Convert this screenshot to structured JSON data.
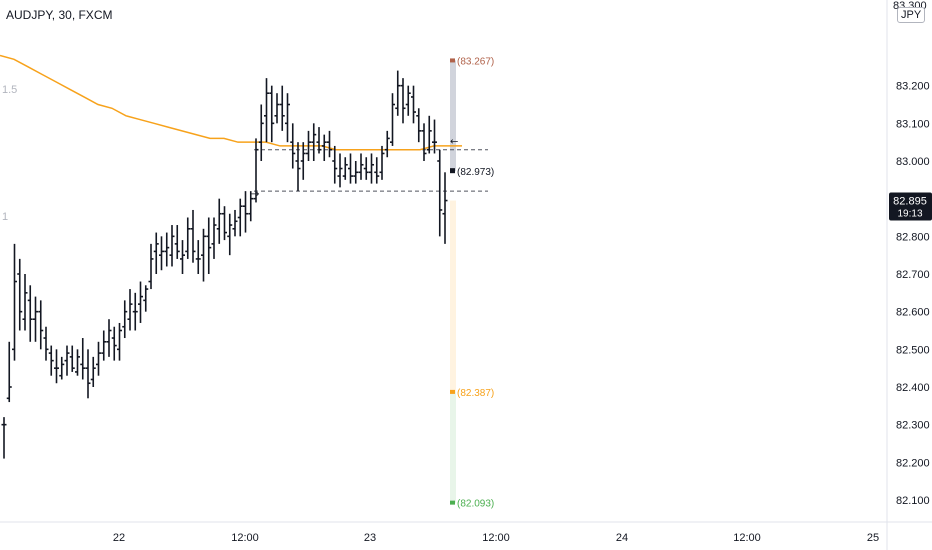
{
  "header": {
    "symbol": "AUDJPY, 30, FXCM"
  },
  "currency_badge": "JPY",
  "corner_price": "83.300",
  "side_marks": [
    "1.5",
    "1"
  ],
  "last_price": {
    "price": "82.895",
    "countdown": "19:13",
    "bg": "#131722"
  },
  "colors": {
    "bars": "#131722",
    "ma": "#f7a21b",
    "grid_text": "#131722",
    "upper_zone": "#d1d4dc",
    "lower_zone_orange": "#fff3e0",
    "lower_zone_green": "#e8f5e9",
    "stop_label": "#c0392b",
    "target_orange": "#f7a21b",
    "target_green": "#4caf50"
  },
  "chart_data": {
    "type": "ohlc-bar",
    "title": "AUDJPY, 30, FXCM",
    "y_axis": {
      "ticks": [
        "83.300",
        "83.200",
        "83.100",
        "83.000",
        "82.900",
        "82.800",
        "82.700",
        "82.600",
        "82.500",
        "82.400",
        "82.300",
        "82.200",
        "82.100"
      ],
      "range": [
        82.06,
        83.4
      ]
    },
    "x_axis": {
      "labels": [
        "22",
        "12:00",
        "23",
        "12:00",
        "24",
        "12:00",
        "25"
      ]
    },
    "levels": {
      "upper_dashed": 83.03,
      "lower_dashed": 82.92
    },
    "annotations": [
      {
        "label": "(83.267)",
        "value": 83.267,
        "color": "#b0624a"
      },
      {
        "label": "(82.973)",
        "value": 82.973,
        "color": "#131722"
      },
      {
        "label": "(82.387)",
        "value": 82.387,
        "color": "#f7a21b"
      },
      {
        "label": "(82.093)",
        "value": 82.093,
        "color": "#4caf50"
      }
    ],
    "ohlc": [
      [
        82.3,
        82.32,
        82.21,
        82.3
      ],
      [
        82.37,
        82.52,
        82.36,
        82.4
      ],
      [
        82.5,
        82.78,
        82.47,
        82.68
      ],
      [
        82.7,
        82.74,
        82.55,
        82.6
      ],
      [
        82.58,
        82.7,
        82.55,
        82.65
      ],
      [
        82.63,
        82.67,
        82.52,
        82.58
      ],
      [
        82.58,
        82.64,
        82.52,
        82.6
      ],
      [
        82.6,
        82.63,
        82.5,
        82.55
      ],
      [
        82.53,
        82.56,
        82.47,
        82.5
      ],
      [
        82.49,
        82.51,
        82.43,
        82.47
      ],
      [
        82.45,
        82.5,
        82.41,
        82.45
      ],
      [
        82.43,
        82.48,
        82.42,
        82.46
      ],
      [
        82.47,
        82.51,
        82.43,
        82.49
      ],
      [
        82.48,
        82.51,
        82.44,
        82.45
      ],
      [
        82.44,
        82.5,
        82.43,
        82.48
      ],
      [
        82.46,
        82.53,
        82.42,
        82.45
      ],
      [
        82.45,
        82.5,
        82.37,
        82.41
      ],
      [
        82.42,
        82.48,
        82.4,
        82.45
      ],
      [
        82.46,
        82.52,
        82.43,
        82.49
      ],
      [
        82.49,
        82.55,
        82.47,
        82.52
      ],
      [
        82.52,
        82.58,
        82.48,
        82.55
      ],
      [
        82.53,
        82.56,
        82.47,
        82.51
      ],
      [
        82.5,
        82.57,
        82.47,
        82.55
      ],
      [
        82.56,
        82.63,
        82.53,
        82.6
      ],
      [
        82.58,
        82.66,
        82.55,
        82.62
      ],
      [
        82.6,
        82.65,
        82.55,
        82.6
      ],
      [
        82.62,
        82.68,
        82.57,
        82.64
      ],
      [
        82.63,
        82.67,
        82.6,
        82.66
      ],
      [
        82.68,
        82.78,
        82.66,
        82.74
      ],
      [
        82.76,
        82.81,
        82.7,
        82.78
      ],
      [
        82.75,
        82.8,
        82.71,
        82.76
      ],
      [
        82.76,
        82.81,
        82.72,
        82.77
      ],
      [
        82.75,
        82.83,
        82.72,
        82.8
      ],
      [
        82.78,
        82.83,
        82.74,
        82.76
      ],
      [
        82.74,
        82.79,
        82.7,
        82.75
      ],
      [
        82.76,
        82.85,
        82.74,
        82.82
      ],
      [
        82.82,
        82.87,
        82.73,
        82.76
      ],
      [
        82.74,
        82.79,
        82.7,
        82.74
      ],
      [
        82.75,
        82.82,
        82.68,
        82.8
      ],
      [
        82.8,
        82.85,
        82.7,
        82.77
      ],
      [
        82.78,
        82.85,
        82.74,
        82.83
      ],
      [
        82.82,
        82.9,
        82.78,
        82.86
      ],
      [
        82.86,
        82.88,
        82.79,
        82.81
      ],
      [
        82.8,
        82.86,
        82.75,
        82.83
      ],
      [
        82.82,
        82.87,
        82.8,
        82.84
      ],
      [
        82.85,
        82.9,
        82.8,
        82.88
      ],
      [
        82.88,
        82.92,
        82.81,
        82.86
      ],
      [
        82.86,
        82.92,
        82.84,
        82.9
      ],
      [
        82.9,
        83.06,
        82.89,
        83.03
      ],
      [
        83.05,
        83.15,
        83.0,
        83.1
      ],
      [
        83.12,
        83.22,
        83.05,
        83.18
      ],
      [
        83.18,
        83.2,
        83.05,
        83.1
      ],
      [
        83.12,
        83.18,
        83.1,
        83.15
      ],
      [
        83.15,
        83.2,
        83.08,
        83.12
      ],
      [
        83.1,
        83.18,
        83.05,
        83.15
      ],
      [
        83.05,
        83.1,
        82.98,
        83.02
      ],
      [
        83.0,
        83.05,
        82.92,
        82.98
      ],
      [
        83.0,
        83.05,
        82.95,
        83.02
      ],
      [
        83.02,
        83.08,
        83.0,
        83.05
      ],
      [
        83.05,
        83.1,
        83.0,
        83.07
      ],
      [
        83.05,
        83.09,
        83.02,
        83.03
      ],
      [
        83.04,
        83.07,
        83.0,
        83.05
      ],
      [
        83.05,
        83.08,
        83.01,
        83.03
      ],
      [
        83.0,
        83.04,
        82.94,
        82.98
      ],
      [
        82.96,
        83.02,
        82.93,
        82.98
      ],
      [
        82.96,
        83.01,
        82.95,
        82.99
      ],
      [
        82.98,
        83.02,
        82.94,
        82.96
      ],
      [
        82.96,
        83.0,
        82.94,
        82.97
      ],
      [
        82.97,
        83.02,
        82.95,
        82.99
      ],
      [
        82.98,
        83.01,
        82.95,
        82.97
      ],
      [
        82.97,
        83.02,
        82.94,
        82.99
      ],
      [
        82.97,
        83.01,
        82.94,
        82.96
      ],
      [
        82.97,
        83.04,
        82.95,
        83.02
      ],
      [
        83.03,
        83.08,
        83.01,
        83.06
      ],
      [
        83.05,
        83.18,
        83.04,
        83.15
      ],
      [
        83.14,
        83.24,
        83.12,
        83.2
      ],
      [
        83.2,
        83.22,
        83.1,
        83.14
      ],
      [
        83.15,
        83.2,
        83.12,
        83.18
      ],
      [
        83.17,
        83.2,
        83.1,
        83.13
      ],
      [
        83.12,
        83.14,
        83.05,
        83.08
      ],
      [
        83.08,
        83.1,
        83.0,
        83.02
      ],
      [
        83.03,
        83.12,
        83.02,
        83.08
      ],
      [
        83.05,
        83.11,
        83.02,
        83.05
      ],
      [
        83.0,
        83.03,
        82.8,
        82.87
      ],
      [
        82.86,
        82.97,
        82.78,
        82.895
      ]
    ],
    "ma": [
      83.28,
      83.27,
      83.25,
      83.23,
      83.21,
      83.19,
      83.17,
      83.15,
      83.14,
      83.12,
      83.11,
      83.1,
      83.09,
      83.08,
      83.07,
      83.06,
      83.06,
      83.05,
      83.05,
      83.05,
      83.04,
      83.04,
      83.04,
      83.04,
      83.03,
      83.03,
      83.03,
      83.03,
      83.03,
      83.03,
      83.03,
      83.04,
      83.04,
      83.04
    ]
  }
}
